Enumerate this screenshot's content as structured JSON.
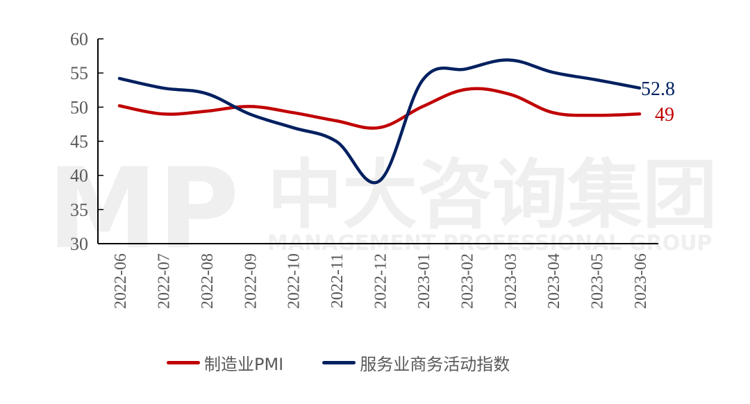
{
  "chart_data": {
    "type": "line",
    "title": "",
    "xlabel": "",
    "ylabel": "",
    "ylim": [
      30,
      60
    ],
    "yticks": [
      30,
      35,
      40,
      45,
      50,
      55,
      60
    ],
    "grid": false,
    "legend_position": "bottom",
    "categories": [
      "2022-06",
      "2022-07",
      "2022-08",
      "2022-09",
      "2022-10",
      "2022-11",
      "2022-12",
      "2023-01",
      "2023-02",
      "2023-03",
      "2023-04",
      "2023-05",
      "2023-06"
    ],
    "series": [
      {
        "name": "制造业PMI",
        "color": "#c00000",
        "values": [
          50.2,
          49.0,
          49.4,
          50.1,
          49.2,
          48.0,
          47.0,
          50.1,
          52.6,
          51.9,
          49.2,
          48.8,
          49.0
        ],
        "end_label": "49"
      },
      {
        "name": "服务业商务活动指数",
        "color": "#002060",
        "values": [
          54.2,
          52.8,
          52.0,
          49.0,
          47.0,
          45.0,
          39.2,
          54.0,
          55.6,
          56.9,
          55.1,
          54.0,
          52.8
        ],
        "end_label": "52.8"
      }
    ],
    "annotations": [
      "52.8",
      "49"
    ]
  },
  "watermark": {
    "logo": "MP",
    "cn": "中大咨询集团",
    "en": "MANAGEMENT PROFESSIONAL GROUP"
  },
  "legend": {
    "items": [
      {
        "label": "制造业PMI",
        "color": "#c00000"
      },
      {
        "label": "服务业商务活动指数",
        "color": "#002060"
      }
    ]
  }
}
